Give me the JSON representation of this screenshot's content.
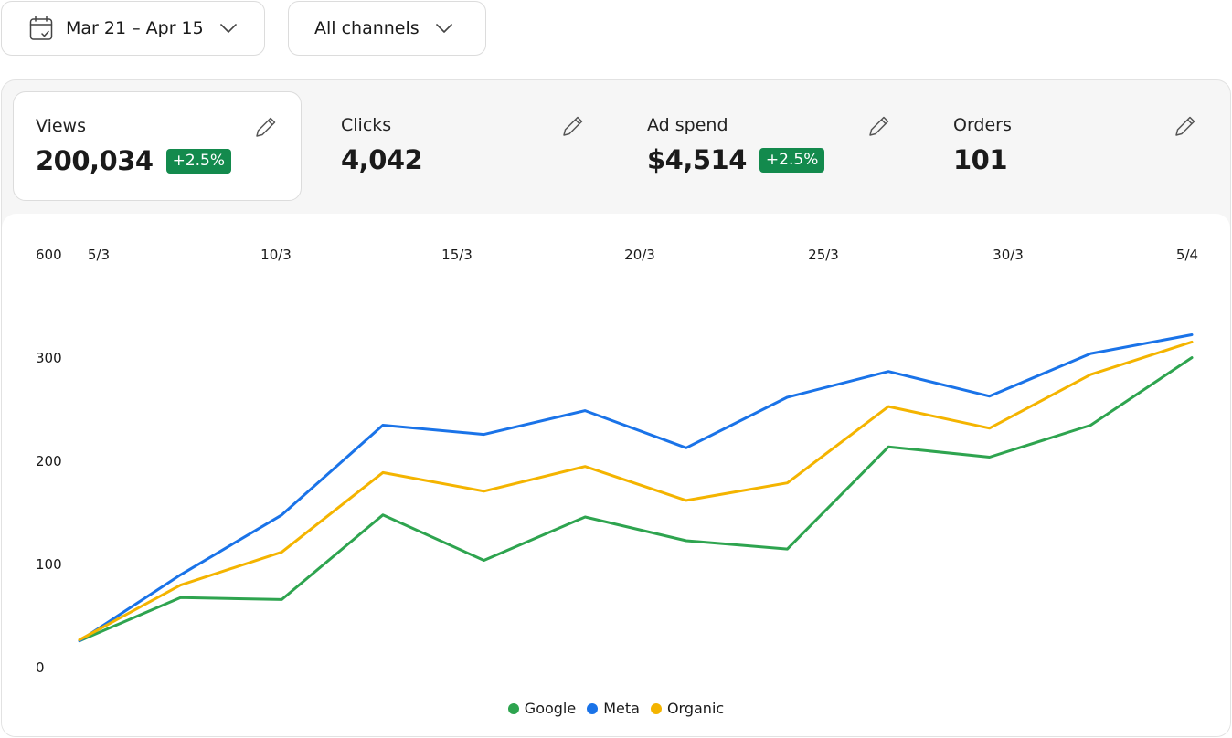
{
  "filters": {
    "date_range": "Mar 21 – Apr 15",
    "channel": "All channels"
  },
  "stats": [
    {
      "name": "Views",
      "value": "200,034",
      "badge": "+2.5%"
    },
    {
      "name": "Clicks",
      "value": "4,042",
      "badge": ""
    },
    {
      "name": "Ad spend",
      "value": "$4,514",
      "badge": "+2.5%"
    },
    {
      "name": "Orders",
      "value": "101",
      "badge": ""
    }
  ],
  "colors": {
    "badge": "#138a4d",
    "Google": "#2ea44f",
    "Meta": "#1a73e8",
    "Organic": "#f4b400"
  },
  "chart_data": {
    "type": "line",
    "x_tick_labels": [
      "5/3",
      "10/3",
      "15/3",
      "20/3",
      "25/3",
      "30/3",
      "5/4"
    ],
    "y_tick_labels": [
      "0",
      "100",
      "200",
      "300",
      "600"
    ],
    "grid": false,
    "legend": "bottom-center",
    "series": [
      {
        "name": "Google",
        "color": "#2ea44f",
        "values": [
          26,
          68,
          66,
          148,
          104,
          146,
          123,
          115,
          214,
          204,
          235,
          301
        ]
      },
      {
        "name": "Meta",
        "color": "#1a73e8",
        "values": [
          26,
          90,
          148,
          235,
          226,
          249,
          213,
          262,
          287,
          263,
          313,
          368
        ]
      },
      {
        "name": "Organic",
        "color": "#f4b400",
        "values": [
          27,
          80,
          112,
          189,
          171,
          195,
          162,
          179,
          253,
          232,
          284,
          347
        ]
      }
    ]
  }
}
